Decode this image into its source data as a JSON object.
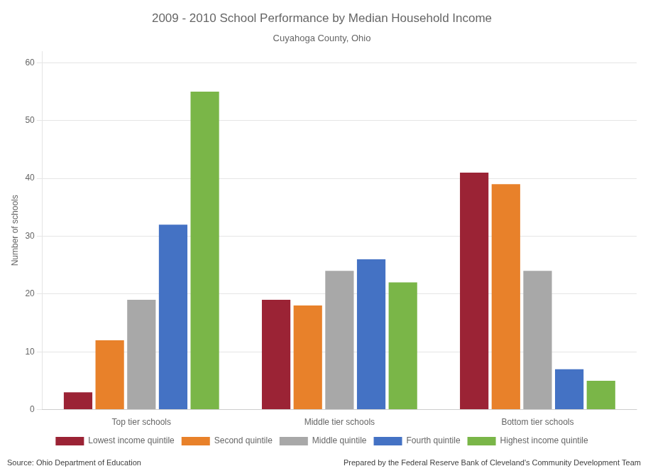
{
  "chart_data": {
    "type": "bar",
    "title": "2009 - 2010 School Performance by Median Household Income",
    "subtitle": "Cuyahoga County, Ohio",
    "categories": [
      "Top tier schools",
      "Middle tier schools",
      "Bottom tier schools"
    ],
    "series": [
      {
        "name": "Lowest income quintile",
        "color": "#9B2335",
        "values": [
          3,
          19,
          41
        ]
      },
      {
        "name": "Second quintile",
        "color": "#E8812A",
        "values": [
          12,
          18,
          39
        ]
      },
      {
        "name": "Middle quintile",
        "color": "#A8A8A8",
        "values": [
          19,
          24,
          24
        ]
      },
      {
        "name": "Fourth quintile",
        "color": "#4472C4",
        "values": [
          32,
          26,
          7
        ]
      },
      {
        "name": "Highest income quintile",
        "color": "#7AB648",
        "values": [
          55,
          22,
          5
        ]
      }
    ],
    "ylabel": "Number of schools",
    "ylim": [
      0,
      62
    ],
    "yticks": [
      0,
      10,
      20,
      30,
      40,
      50,
      60
    ],
    "grid": true,
    "legend": "bottom",
    "annotations": [
      "Source: Ohio Department of Education",
      "Prepared by the Federal Reserve Bank of Cleveland's Community Development Team"
    ]
  }
}
